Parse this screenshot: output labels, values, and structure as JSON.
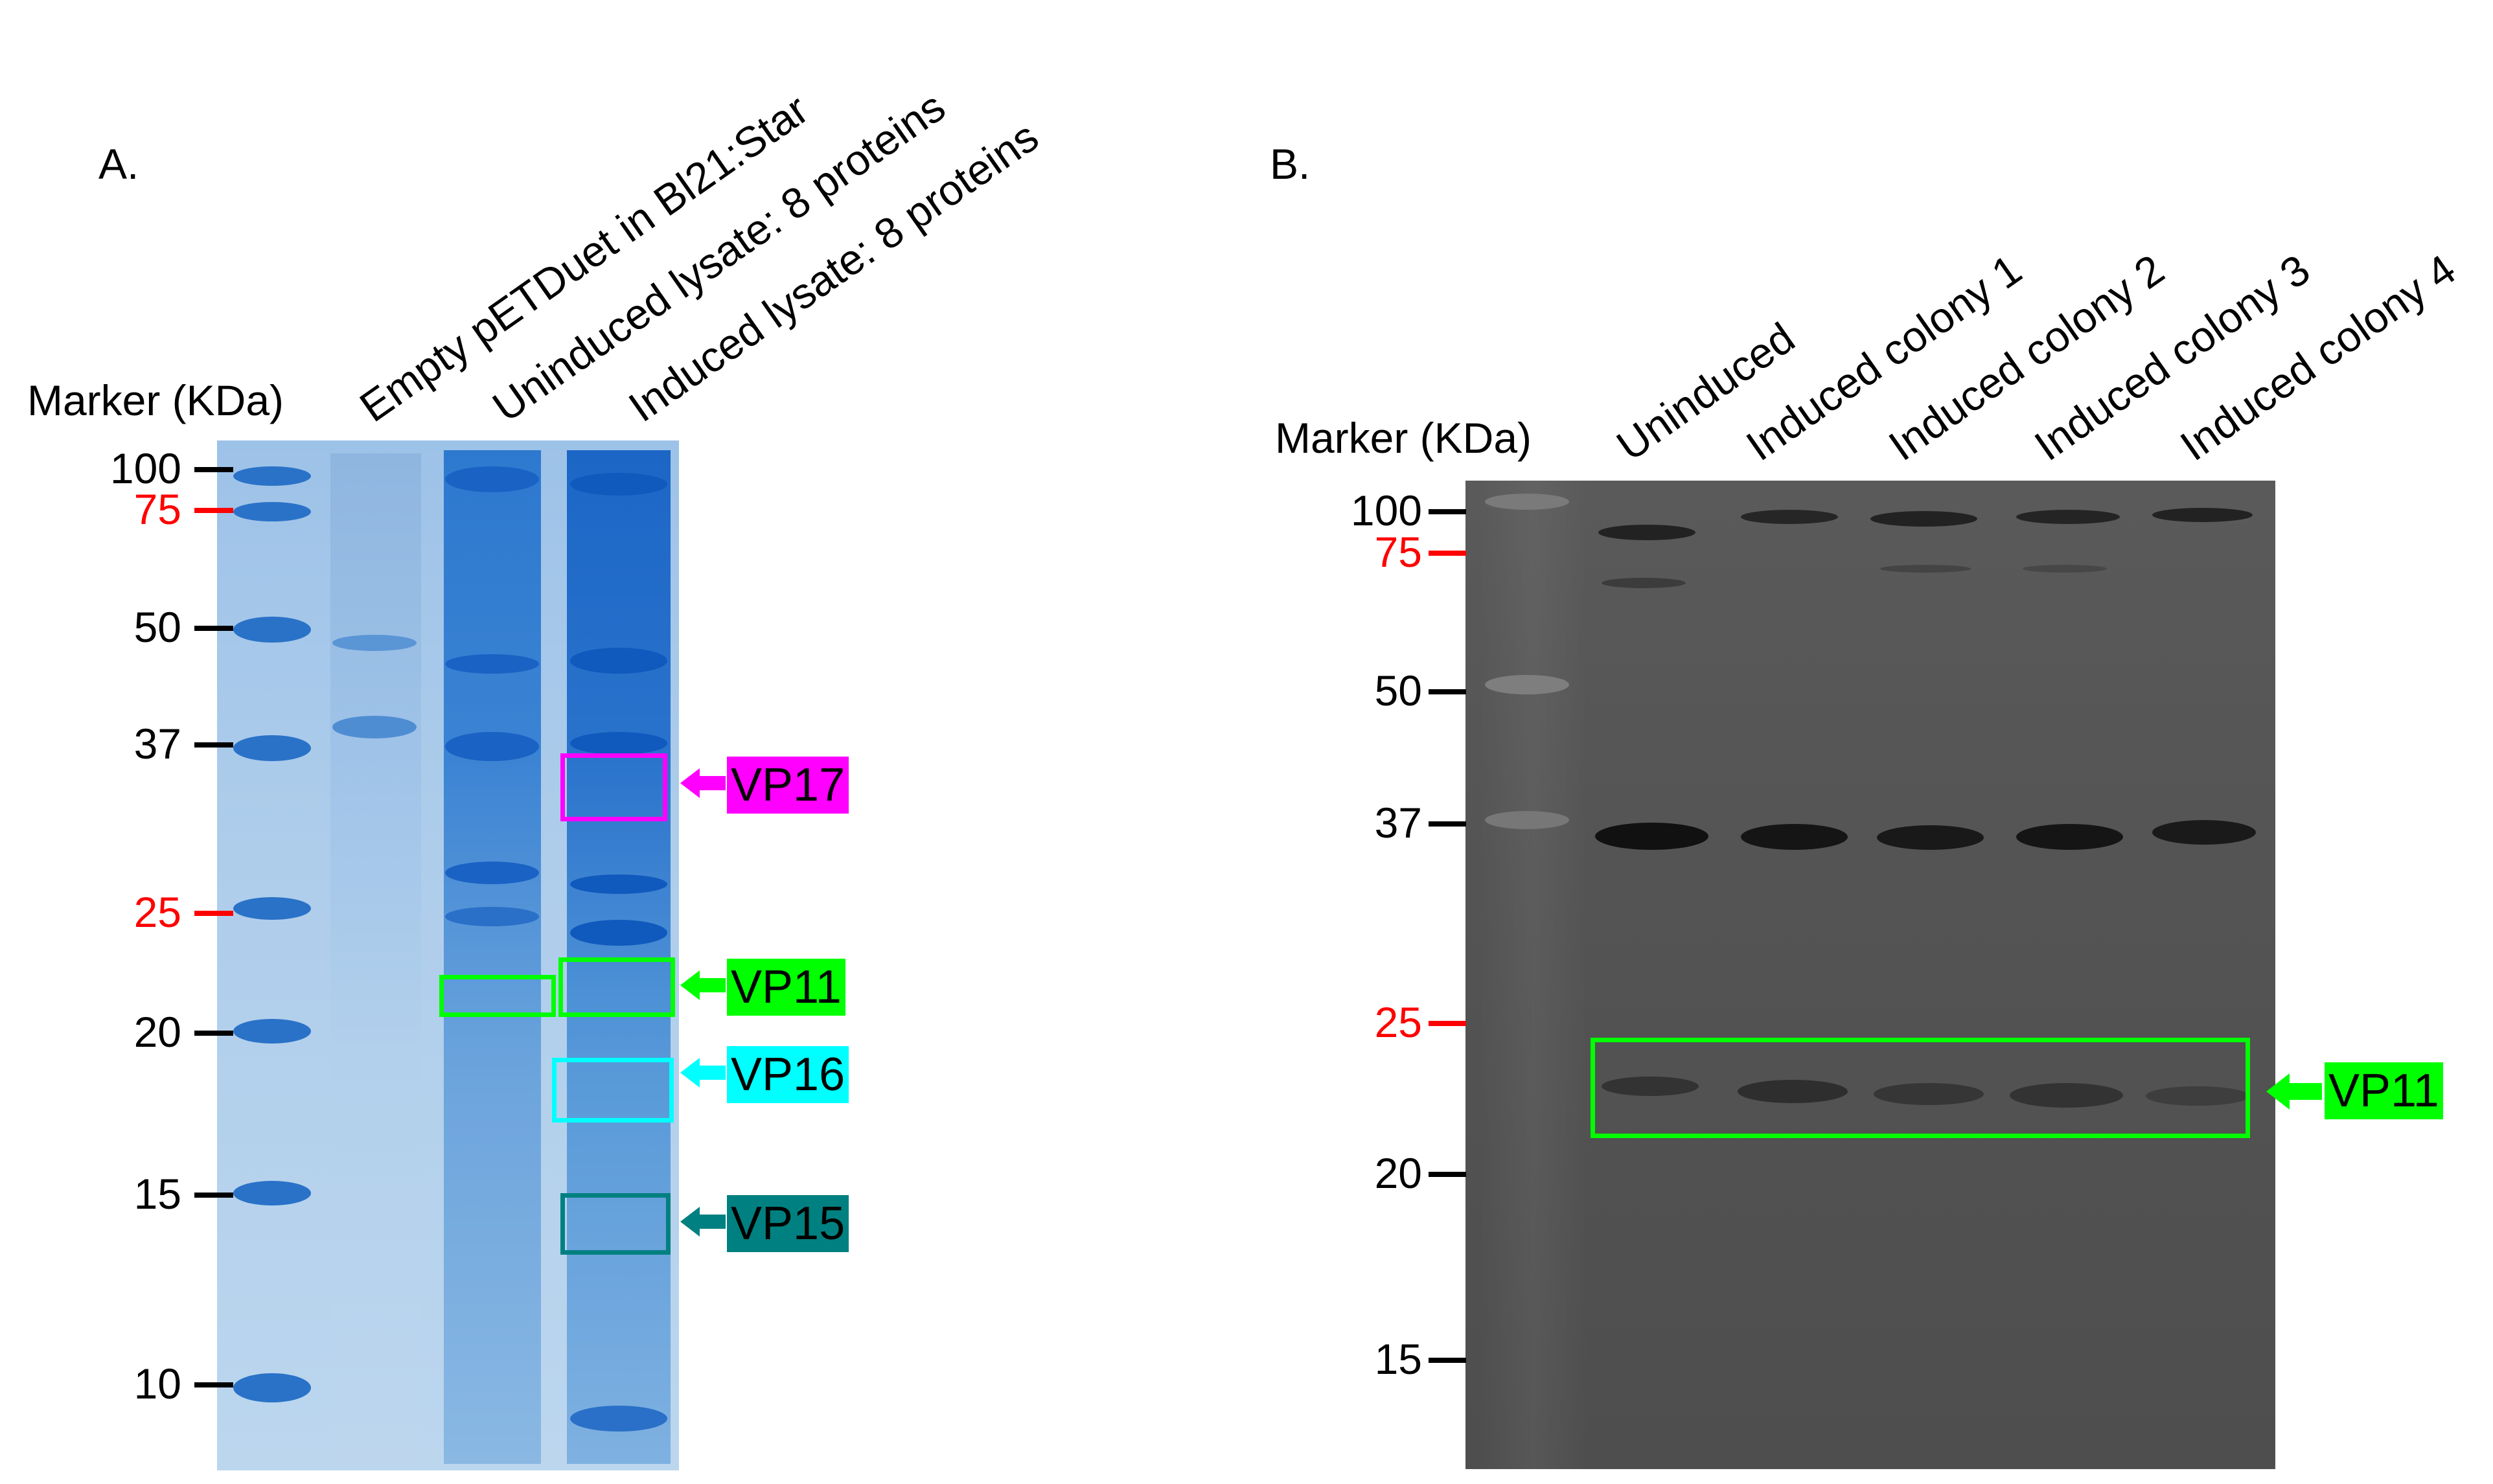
{
  "panel_a": {
    "label": "A.",
    "marker_title": "Marker (KDa)",
    "lanes": [
      "Empty pETDuet in Bl21:Star",
      "Uninduced lysate: 8 proteins",
      "Induced lysate: 8 proteins"
    ],
    "markers": [
      "100",
      "75",
      "50",
      "37",
      "25",
      "20",
      "15",
      "10"
    ],
    "proteins": [
      {
        "name": "VP17",
        "color": "#ff00ff"
      },
      {
        "name": "VP11",
        "color": "#00ff00"
      },
      {
        "name": "VP16",
        "color": "#00ffff"
      },
      {
        "name": "VP15",
        "color": "#008080"
      }
    ]
  },
  "panel_b": {
    "label": "B.",
    "marker_title": "Marker (KDa)",
    "lanes": [
      "Uninduced",
      "Induced colony 1",
      "Induced colony 2",
      "Induced colony 3",
      "Induced colony 4"
    ],
    "markers": [
      "100",
      "75",
      "50",
      "37",
      "25",
      "20",
      "15"
    ],
    "proteins": [
      {
        "name": "VP11",
        "color": "#00ff00"
      }
    ]
  },
  "colors": {
    "red_marker": "#ff0000",
    "coomassie_gel": "#a8c8e8",
    "western_blot": "#545454"
  }
}
